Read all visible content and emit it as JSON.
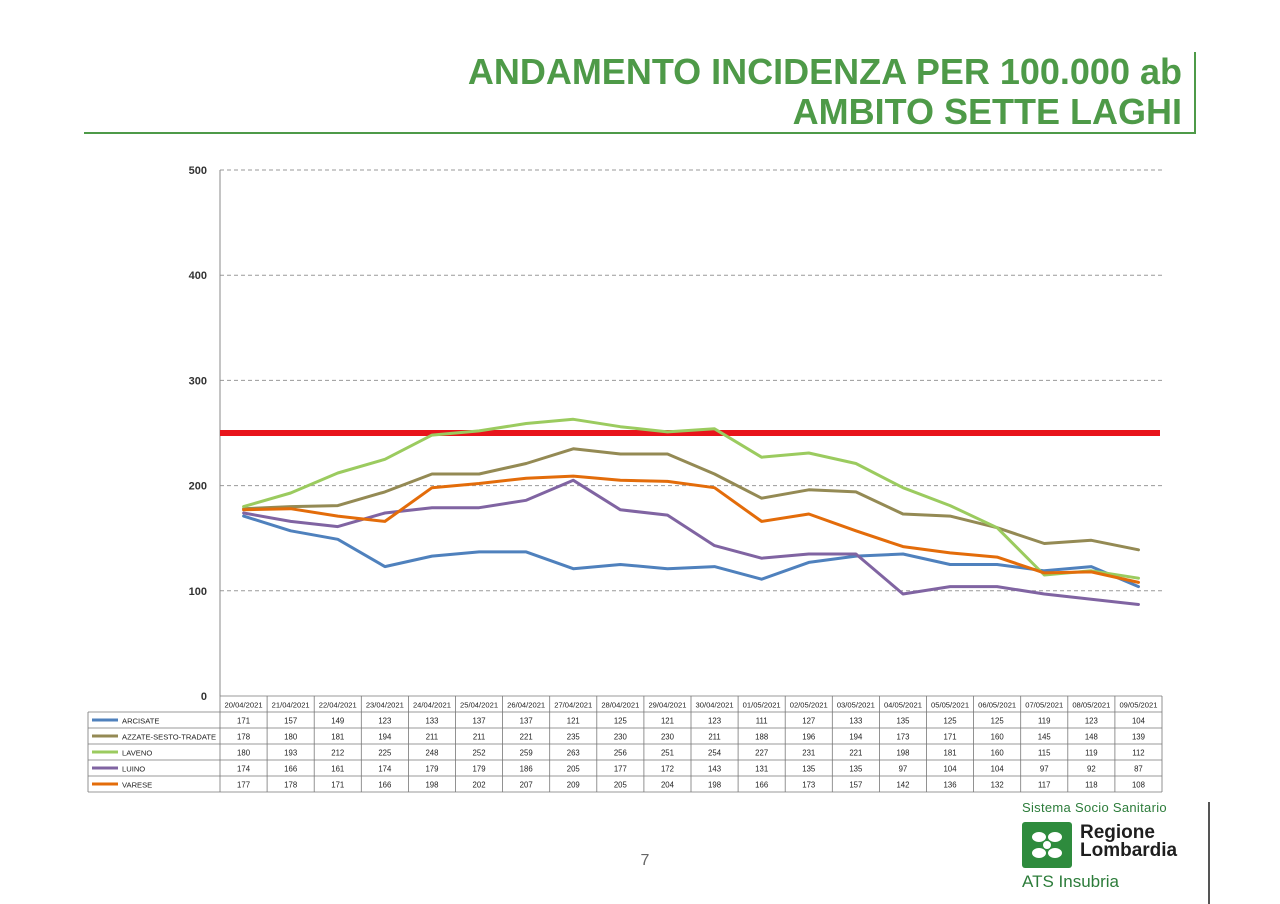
{
  "page": {
    "title_line1": "ANDAMENTO INCIDENZA PER 100.000 ab",
    "title_line2": "AMBITO SETTE LAGHI",
    "page_number": "7"
  },
  "brand": {
    "system": "Sistema Socio Sanitario",
    "region_line1": "Regione",
    "region_line2": "Lombardia",
    "agency": "ATS Insubria",
    "logo_icon": "regione-lombardia-rose-icon"
  },
  "chart_data": {
    "type": "line",
    "title": "",
    "xlabel": "",
    "ylabel": "",
    "ylim": [
      0,
      500
    ],
    "yticks": [
      0,
      100,
      200,
      300,
      400,
      500
    ],
    "grid": true,
    "legend": "data-table-below",
    "categories": [
      "20/04/2021",
      "21/04/2021",
      "22/04/2021",
      "23/04/2021",
      "24/04/2021",
      "25/04/2021",
      "26/04/2021",
      "27/04/2021",
      "28/04/2021",
      "29/04/2021",
      "30/04/2021",
      "01/05/2021",
      "02/05/2021",
      "03/05/2021",
      "04/05/2021",
      "05/05/2021",
      "06/05/2021",
      "07/05/2021",
      "08/05/2021",
      "09/05/2021"
    ],
    "threshold": {
      "value": 250,
      "color": "#e8141b"
    },
    "series": [
      {
        "name": "ARCISATE",
        "color": "#4f81bd",
        "values": [
          171,
          157,
          149,
          123,
          133,
          137,
          137,
          121,
          125,
          121,
          123,
          111,
          127,
          133,
          135,
          125,
          125,
          119,
          123,
          104
        ]
      },
      {
        "name": "AZZATE-SESTO-TRADATE",
        "color": "#948a54",
        "values": [
          178,
          180,
          181,
          194,
          211,
          211,
          221,
          235,
          230,
          230,
          211,
          188,
          196,
          194,
          173,
          171,
          160,
          145,
          148,
          139
        ]
      },
      {
        "name": "LAVENO",
        "color": "#9bcb5f",
        "values": [
          180,
          193,
          212,
          225,
          248,
          252,
          259,
          263,
          256,
          251,
          254,
          227,
          231,
          221,
          198,
          181,
          160,
          115,
          119,
          112
        ]
      },
      {
        "name": "LUINO",
        "color": "#8064a2",
        "values": [
          174,
          166,
          161,
          174,
          179,
          179,
          186,
          205,
          177,
          172,
          143,
          131,
          135,
          135,
          97,
          104,
          104,
          97,
          92,
          87
        ]
      },
      {
        "name": "VARESE",
        "color": "#e36c0a",
        "values": [
          177,
          178,
          171,
          166,
          198,
          202,
          207,
          209,
          205,
          204,
          198,
          166,
          173,
          157,
          142,
          136,
          132,
          117,
          118,
          108
        ]
      }
    ]
  }
}
